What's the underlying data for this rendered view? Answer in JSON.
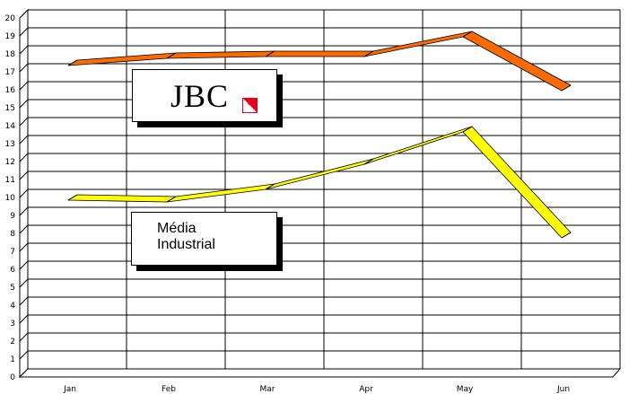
{
  "chart_data": {
    "type": "line",
    "title": "",
    "xlabel": "",
    "ylabel": "",
    "categories": [
      "Jan",
      "Feb",
      "Mar",
      "Apr",
      "May",
      "Jun"
    ],
    "ylim": [
      0,
      20
    ],
    "yticks": [
      "0",
      "1",
      "2",
      "3",
      "4",
      "5",
      "6",
      "7",
      "8",
      "9",
      "10",
      "11",
      "12",
      "13",
      "14",
      "15",
      "16",
      "17",
      "18",
      "19",
      "20"
    ],
    "grid": true,
    "style": "3d-ribbon",
    "series": [
      {
        "name": "JBC",
        "values": [
          17.2,
          17.6,
          17.7,
          17.7,
          18.8,
          15.8
        ],
        "color": "#ff6a00"
      },
      {
        "name": "Média Industrial",
        "values": [
          9.7,
          9.6,
          10.3,
          11.7,
          13.5,
          7.6
        ],
        "color": "#ffff00"
      }
    ],
    "annotations": {
      "jbc_label": "JBC",
      "media_label_line1": "Média",
      "media_label_line2": "Industrial"
    }
  }
}
